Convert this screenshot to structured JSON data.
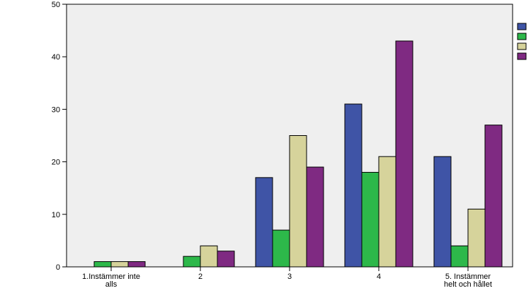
{
  "chart_data": {
    "type": "bar",
    "title": "",
    "xlabel": "",
    "ylabel": "",
    "categories": [
      [
        "1.Instämmer inte",
        "alls"
      ],
      [
        "2"
      ],
      [
        "3"
      ],
      [
        "4"
      ],
      [
        "5. Instämmer",
        "helt och hållet"
      ]
    ],
    "ylim": [
      0,
      50
    ],
    "yticks": [
      0,
      10,
      20,
      30,
      40,
      50
    ],
    "grid": false,
    "legend": {
      "placement": "right",
      "entries_text_visible": false
    },
    "series": [
      {
        "color": "#3F54A6",
        "values": [
          0,
          0,
          17,
          31,
          21
        ]
      },
      {
        "color": "#2DB84A",
        "values": [
          1,
          2,
          7,
          18,
          4
        ]
      },
      {
        "color": "#D6D39B",
        "values": [
          1,
          4,
          25,
          21,
          11
        ]
      },
      {
        "color": "#7F2A82",
        "values": [
          1,
          3,
          19,
          43,
          27
        ]
      }
    ],
    "plot_background": "#EFEFEF"
  }
}
